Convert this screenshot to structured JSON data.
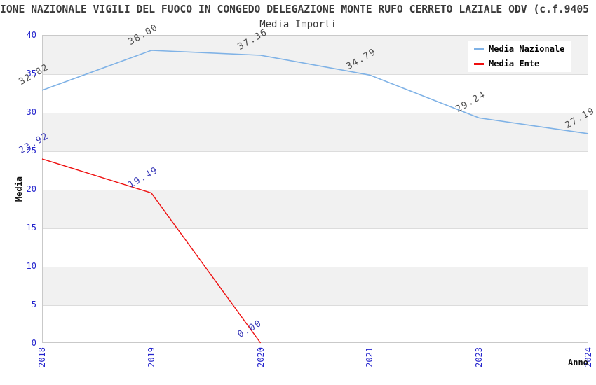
{
  "chart": {
    "title": "IONE NAZIONALE VIGILI DEL FUOCO IN CONGEDO DELEGAZIONE MONTE RUFO CERRETO LAZIALE ODV (c.f.9405",
    "subtitle": "Media Importi",
    "xlabel": "Anno",
    "ylabel": "Media"
  },
  "chart_data": {
    "type": "line",
    "title": "Media Importi",
    "xlabel": "Anno",
    "ylabel": "Media",
    "categories": [
      "2018",
      "2019",
      "2020",
      "2021",
      "2023",
      "2024"
    ],
    "series": [
      {
        "name": "Media Nazionale",
        "color": "#7fb2e6",
        "label_color": "#4d4d4d",
        "values": [
          32.82,
          38.0,
          37.36,
          34.79,
          29.24,
          27.19
        ]
      },
      {
        "name": "Media Ente",
        "color": "#ee0f0f",
        "label_color": "#3a3ab8",
        "values": [
          23.92,
          19.49,
          0.0,
          null,
          null,
          null
        ]
      }
    ],
    "ylim": [
      0,
      40
    ],
    "ytick_step": 5,
    "yticks": [
      0,
      5,
      10,
      15,
      20,
      25,
      30,
      35,
      40
    ],
    "grid": true,
    "band_fill_ranges": [
      [
        35,
        40
      ],
      [
        25,
        30
      ],
      [
        15,
        20
      ],
      [
        5,
        10
      ]
    ],
    "band_color": "#f1f1f1",
    "tick_color": "#2525cd",
    "legend_position": "top-right",
    "value_label_decimals": 2
  }
}
